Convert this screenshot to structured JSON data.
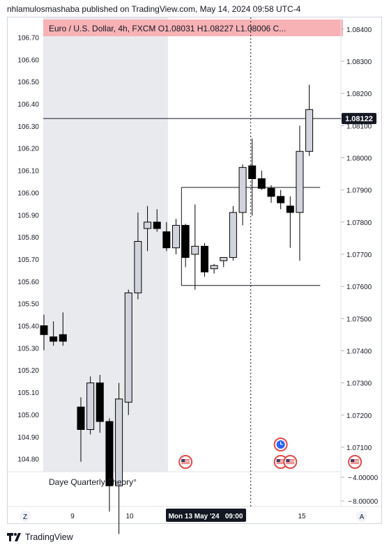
{
  "header": {
    "published_by": "nhlamulosmashaba published on TradingView.com, May 14, 2024 09:58 UTC-4"
  },
  "symbol_bar": {
    "text": "Euro / U.S. Dollar, 4h, FXCM  O1.08031  H1.08227  L1.08006  C..."
  },
  "indicator_label": "Daye Quarterly Theory°",
  "left_axis_ticks": [
    "106.70",
    "106.60",
    "106.50",
    "106.40",
    "106.30",
    "106.20",
    "106.10",
    "106.00",
    "105.90",
    "105.80",
    "105.70",
    "105.60",
    "105.50",
    "105.40",
    "105.30",
    "105.20",
    "105.10",
    "105.00",
    "104.90",
    "104.80"
  ],
  "right_axis_ticks": [
    "1.08400",
    "1.08300",
    "1.08200",
    "1.08100",
    "1.08000",
    "1.07900",
    "1.07800",
    "1.07700",
    "1.07600",
    "1.07500",
    "1.07400",
    "1.07300",
    "1.07200",
    "1.07100"
  ],
  "indicator_ticks": [
    "4.00000",
    "8.00000"
  ],
  "indicator_tick_signs": [
    "−",
    "−"
  ],
  "x_axis": {
    "labels": [
      "9",
      "10",
      "15"
    ],
    "crosshair_label": "Mon 13 May '24   09:00",
    "left_button": "Z",
    "right_button": "A"
  },
  "price_label": "1.08122",
  "footer": {
    "brand": "TradingView"
  },
  "colors": {
    "up_fill": "#d1d4dc",
    "down_fill": "#000000",
    "candle_border": "#000000",
    "symbol_bar_bg": "#f7b2b6",
    "shaded_region": "#e9eaee",
    "price_label_bg": "#131722",
    "event_flag_red": "#e04a4a",
    "event_flag_blue": "#2962ff"
  },
  "chart_data": {
    "type": "candlestick",
    "symbol": "Euro / U.S. Dollar",
    "timeframe": "4h",
    "right_scale": "EUR/USD",
    "left_scale": "overlay",
    "ylim_right": [
      1.0705,
      1.0843
    ],
    "ylim_left": [
      104.78,
      106.78
    ],
    "current_price": 1.08122,
    "ohlc_right_scale": [
      {
        "o": 1.07225,
        "h": 1.07255,
        "l": 1.07055,
        "c": 1.07155
      },
      {
        "o": 1.07155,
        "h": 1.0732,
        "l": 1.0714,
        "c": 1.073
      },
      {
        "o": 1.073,
        "h": 1.07325,
        "l": 1.07145,
        "c": 1.0718
      },
      {
        "o": 1.0718,
        "h": 1.0719,
        "l": 1.069,
        "c": 1.0698
      },
      {
        "o": 1.0698,
        "h": 1.073,
        "l": 1.0683,
        "c": 1.0725
      },
      {
        "o": 1.0724,
        "h": 1.0759,
        "l": 1.072,
        "c": 1.0758
      },
      {
        "o": 1.0758,
        "h": 1.0783,
        "l": 1.0756,
        "c": 1.0774
      },
      {
        "o": 1.0778,
        "h": 1.0785,
        "l": 1.0771,
        "c": 1.078
      },
      {
        "o": 1.078,
        "h": 1.0784,
        "l": 1.0777,
        "c": 1.0778
      },
      {
        "o": 1.0777,
        "h": 1.078,
        "l": 1.0771,
        "c": 1.0772
      },
      {
        "o": 1.0772,
        "h": 1.0781,
        "l": 1.077,
        "c": 1.0779
      },
      {
        "o": 1.0779,
        "h": 1.07795,
        "l": 1.0766,
        "c": 1.0769
      },
      {
        "o": 1.077,
        "h": 1.07855,
        "l": 1.0759,
        "c": 1.07725
      },
      {
        "o": 1.07725,
        "h": 1.07735,
        "l": 1.0763,
        "c": 1.07645
      },
      {
        "o": 1.07655,
        "h": 1.0767,
        "l": 1.0764,
        "c": 1.07665
      },
      {
        "o": 1.0768,
        "h": 1.0769,
        "l": 1.0766,
        "c": 1.0769
      },
      {
        "o": 1.0769,
        "h": 1.0785,
        "l": 1.0768,
        "c": 1.0783
      },
      {
        "o": 1.0783,
        "h": 1.0798,
        "l": 1.0779,
        "c": 1.0797
      },
      {
        "o": 1.07975,
        "h": 1.0806,
        "l": 1.0782,
        "c": 1.07935
      },
      {
        "o": 1.07935,
        "h": 1.0796,
        "l": 1.079,
        "c": 1.07905
      },
      {
        "o": 1.07905,
        "h": 1.07915,
        "l": 1.0786,
        "c": 1.0788
      },
      {
        "o": 1.0788,
        "h": 1.079,
        "l": 1.0784,
        "c": 1.0786
      },
      {
        "o": 1.0785,
        "h": 1.0788,
        "l": 1.0772,
        "c": 1.0783
      },
      {
        "o": 1.0783,
        "h": 1.081,
        "l": 1.0768,
        "c": 1.0802
      },
      {
        "o": 1.0802,
        "h": 1.08227,
        "l": 1.08006,
        "c": 1.0815
      }
    ],
    "ohlc_left_scale": [
      {
        "o": 105.4,
        "h": 105.45,
        "l": 105.29,
        "c": 105.36
      },
      {
        "o": 105.35,
        "h": 105.42,
        "l": 105.31,
        "c": 105.33
      },
      {
        "o": 105.36,
        "h": 105.46,
        "l": 105.31,
        "c": 105.33
      }
    ],
    "ranges_right_scale": [
      {
        "type": "range",
        "from_candle": 11,
        "to_candle": 24,
        "high": 1.07908,
        "low": 1.07603
      }
    ],
    "crosshair_candle": 18,
    "event_flags": [
      {
        "kind": "us",
        "candle": 11,
        "row": "bottom"
      },
      {
        "kind": "us",
        "candle": 21,
        "row": "bottom"
      },
      {
        "kind": "us",
        "candle": 22,
        "row": "bottom"
      },
      {
        "kind": "us",
        "candle": 24,
        "row": "bottom",
        "right_offset": 4.8
      },
      {
        "kind": "clock",
        "candle": 21,
        "row": "top"
      }
    ],
    "shaded_session_to_candle": 12,
    "indicator_pane": {
      "title": "Daye Quarterly Theory°",
      "ticks": [
        -4.0,
        -8.0
      ]
    }
  }
}
